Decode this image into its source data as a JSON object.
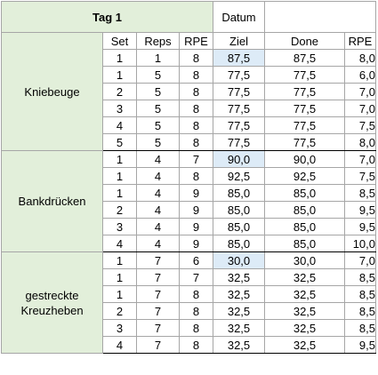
{
  "title": "Tag 1",
  "datum_label": "Datum",
  "datum_value": "",
  "headers": [
    "Set",
    "Reps",
    "RPE",
    "Ziel",
    "Done",
    "RPE"
  ],
  "groups": [
    {
      "exercise": "Kniebeuge",
      "rows": [
        {
          "set": "1",
          "reps": "1",
          "rpe": "8",
          "ziel": "87,5",
          "done": "87,5",
          "rpe_done": "8,0",
          "highlight": true
        },
        {
          "set": "1",
          "reps": "5",
          "rpe": "8",
          "ziel": "77,5",
          "done": "77,5",
          "rpe_done": "6,0",
          "highlight": false
        },
        {
          "set": "2",
          "reps": "5",
          "rpe": "8",
          "ziel": "77,5",
          "done": "77,5",
          "rpe_done": "7,0",
          "highlight": false
        },
        {
          "set": "3",
          "reps": "5",
          "rpe": "8",
          "ziel": "77,5",
          "done": "77,5",
          "rpe_done": "7,0",
          "highlight": false
        },
        {
          "set": "4",
          "reps": "5",
          "rpe": "8",
          "ziel": "77,5",
          "done": "77,5",
          "rpe_done": "7,5",
          "highlight": false
        },
        {
          "set": "5",
          "reps": "5",
          "rpe": "8",
          "ziel": "77,5",
          "done": "77,5",
          "rpe_done": "8,0",
          "highlight": false
        }
      ]
    },
    {
      "exercise": "Bankdrücken",
      "rows": [
        {
          "set": "1",
          "reps": "4",
          "rpe": "7",
          "ziel": "90,0",
          "done": "90,0",
          "rpe_done": "7,0",
          "highlight": true
        },
        {
          "set": "1",
          "reps": "4",
          "rpe": "8",
          "ziel": "92,5",
          "done": "92,5",
          "rpe_done": "7,5",
          "highlight": false
        },
        {
          "set": "1",
          "reps": "4",
          "rpe": "9",
          "ziel": "85,0",
          "done": "85,0",
          "rpe_done": "8,5",
          "highlight": false
        },
        {
          "set": "2",
          "reps": "4",
          "rpe": "9",
          "ziel": "85,0",
          "done": "85,0",
          "rpe_done": "9,5",
          "highlight": false
        },
        {
          "set": "3",
          "reps": "4",
          "rpe": "9",
          "ziel": "85,0",
          "done": "85,0",
          "rpe_done": "9,5",
          "highlight": false
        },
        {
          "set": "4",
          "reps": "4",
          "rpe": "9",
          "ziel": "85,0",
          "done": "85,0",
          "rpe_done": "10,0",
          "highlight": false
        }
      ]
    },
    {
      "exercise": "gestreckte Kreuzheben",
      "exercise_lines": [
        "gestreckte",
        "Kreuzheben"
      ],
      "rows": [
        {
          "set": "1",
          "reps": "7",
          "rpe": "6",
          "ziel": "30,0",
          "done": "30,0",
          "rpe_done": "7,0",
          "highlight": true
        },
        {
          "set": "1",
          "reps": "7",
          "rpe": "7",
          "ziel": "32,5",
          "done": "32,5",
          "rpe_done": "8,5",
          "highlight": false
        },
        {
          "set": "1",
          "reps": "7",
          "rpe": "8",
          "ziel": "32,5",
          "done": "32,5",
          "rpe_done": "8,5",
          "highlight": false
        },
        {
          "set": "2",
          "reps": "7",
          "rpe": "8",
          "ziel": "32,5",
          "done": "32,5",
          "rpe_done": "8,5",
          "highlight": false
        },
        {
          "set": "3",
          "reps": "7",
          "rpe": "8",
          "ziel": "32,5",
          "done": "32,5",
          "rpe_done": "8,5",
          "highlight": false
        },
        {
          "set": "4",
          "reps": "7",
          "rpe": "8",
          "ziel": "32,5",
          "done": "32,5",
          "rpe_done": "9,5",
          "highlight": false
        }
      ]
    }
  ],
  "colors": {
    "exercise_fill": "#e2efda",
    "highlight_fill": "#ddebf7",
    "grid_line": "#a6a6a6",
    "group_border": "#000000"
  }
}
